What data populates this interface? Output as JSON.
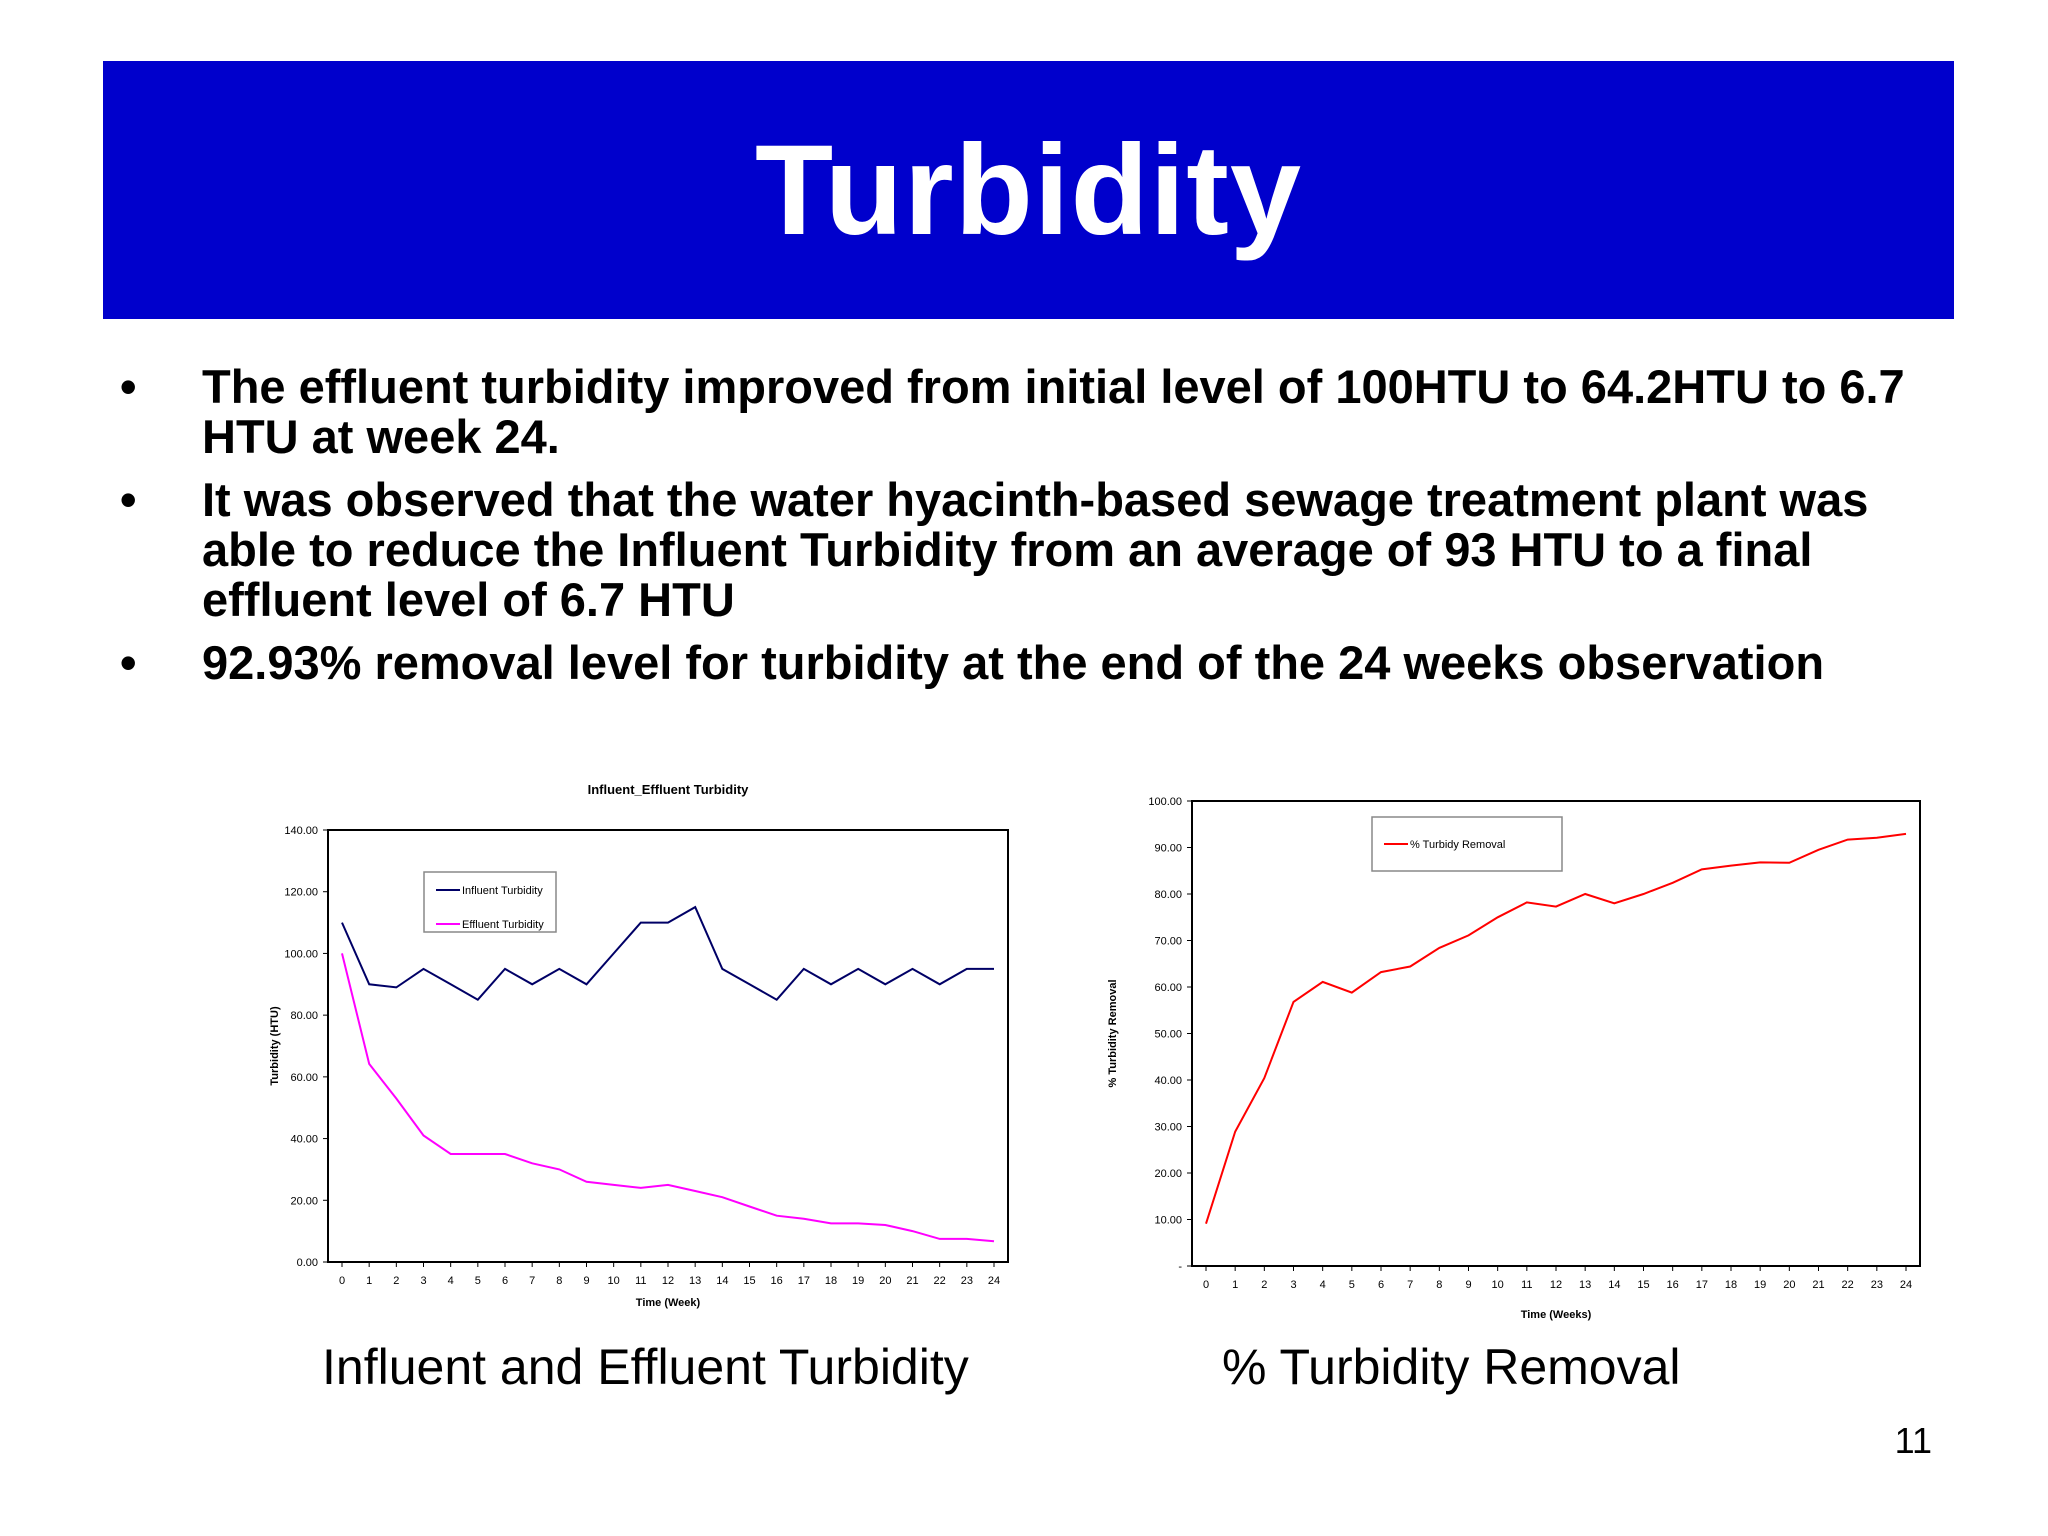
{
  "slide": {
    "title": "Turbidity",
    "bullets": [
      "The effluent turbidity improved from initial level of 100HTU to 64.2HTU to 6.7 HTU at week 24.",
      "It was observed that the water hyacinth-based sewage treatment plant was able to reduce the Influent Turbidity from an average of 93 HTU to a final effluent level of 6.7 HTU",
      "92.93% removal level for turbidity at the end of the 24 weeks observation"
    ],
    "bullet_symbol": "•",
    "captions": {
      "left": "Influent and Effluent Turbidity",
      "right": "% Turbidity Removal"
    },
    "page_number": "11",
    "colors": {
      "title_bar": "#0000cc",
      "title_text": "#ffffff"
    }
  },
  "chart_data": [
    {
      "type": "line",
      "title": "Influent_Effluent Turbidity",
      "xlabel": "Time (Week)",
      "ylabel": "Turbidity (HTU)",
      "x": [
        0,
        1,
        2,
        3,
        4,
        5,
        6,
        7,
        8,
        9,
        10,
        11,
        12,
        13,
        14,
        15,
        16,
        17,
        18,
        19,
        20,
        21,
        22,
        23,
        24
      ],
      "ylim": [
        0,
        140
      ],
      "y_ticks": [
        "0.00",
        "20.00",
        "40.00",
        "60.00",
        "80.00",
        "100.00",
        "120.00",
        "140.00"
      ],
      "grid": false,
      "legend": "top-left",
      "series": [
        {
          "name": "Influent Turbidity",
          "color": "#000066",
          "values": [
            110,
            90,
            89,
            95,
            90,
            85,
            95,
            90,
            95,
            90,
            100,
            110,
            110,
            115,
            95,
            90,
            85,
            95,
            90,
            95,
            90,
            95,
            90,
            95,
            95
          ]
        },
        {
          "name": "Effluent Turbidity",
          "color": "#ff00ff",
          "values": [
            100,
            64.2,
            53,
            41,
            35,
            35,
            35,
            32,
            30,
            26,
            25,
            24,
            25,
            23,
            21,
            18,
            15,
            14,
            12.5,
            12.5,
            12,
            10,
            7.5,
            7.5,
            6.7
          ]
        }
      ]
    },
    {
      "type": "line",
      "title": "",
      "xlabel": "Time (Weeks)",
      "ylabel": "% Turbidity Removal",
      "x": [
        0,
        1,
        2,
        3,
        4,
        5,
        6,
        7,
        8,
        9,
        10,
        11,
        12,
        13,
        14,
        15,
        16,
        17,
        18,
        19,
        20,
        21,
        22,
        23,
        24
      ],
      "ylim": [
        0,
        100
      ],
      "y_ticks": [
        "-",
        "10.00",
        "20.00",
        "30.00",
        "40.00",
        "50.00",
        "60.00",
        "70.00",
        "80.00",
        "90.00",
        "100.00"
      ],
      "grid": false,
      "legend": "top-center",
      "series": [
        {
          "name": "% Turbidy Removal",
          "color": "#ff0000",
          "values": [
            9.1,
            28.9,
            40.4,
            56.8,
            61.1,
            58.8,
            63.2,
            64.4,
            68.4,
            71.1,
            75,
            78.2,
            77.3,
            80,
            78,
            80,
            82.4,
            85.3,
            86.1,
            86.8,
            86.7,
            89.5,
            91.7,
            92.1,
            92.93
          ]
        }
      ]
    }
  ]
}
